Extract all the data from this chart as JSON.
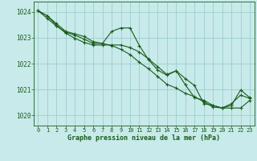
{
  "title": "Graphe pression niveau de la mer (hPa)",
  "background_color": "#c8eaea",
  "grid_color": "#9ecece",
  "line_color": "#1a5c1a",
  "xlim": [
    -0.5,
    23.5
  ],
  "ylim": [
    1019.6,
    1024.4
  ],
  "yticks": [
    1020,
    1021,
    1022,
    1023,
    1024
  ],
  "xticks": [
    0,
    1,
    2,
    3,
    4,
    5,
    6,
    7,
    8,
    9,
    10,
    11,
    12,
    13,
    14,
    15,
    16,
    17,
    18,
    19,
    20,
    21,
    22,
    23
  ],
  "series": [
    [
      1024.05,
      1023.85,
      1023.55,
      1023.25,
      1023.15,
      1023.05,
      1022.85,
      1022.78,
      1022.7,
      1022.55,
      1022.35,
      1022.05,
      1021.8,
      1021.5,
      1021.2,
      1021.05,
      1020.85,
      1020.72,
      1020.52,
      1020.32,
      1020.28,
      1020.45,
      1020.78,
      1020.65
    ],
    [
      1024.05,
      1023.75,
      1023.45,
      1023.22,
      1023.1,
      1022.95,
      1022.78,
      1022.78,
      1023.25,
      1023.38,
      1023.38,
      1022.7,
      1022.15,
      1021.75,
      1021.55,
      1021.72,
      1021.18,
      1020.68,
      1020.58,
      1020.38,
      1020.28,
      1020.38,
      1020.98,
      1020.68
    ],
    [
      1024.05,
      1023.85,
      1023.48,
      1023.18,
      1022.98,
      1022.82,
      1022.72,
      1022.72,
      1022.72,
      1022.72,
      1022.62,
      1022.45,
      1022.18,
      1021.88,
      1021.58,
      1021.72,
      1021.42,
      1021.15,
      1020.45,
      1020.38,
      1020.28,
      1020.28,
      1020.28,
      1020.58
    ]
  ],
  "tick_fontsize": 5.0,
  "label_fontsize": 5.5,
  "title_fontsize": 6.0
}
